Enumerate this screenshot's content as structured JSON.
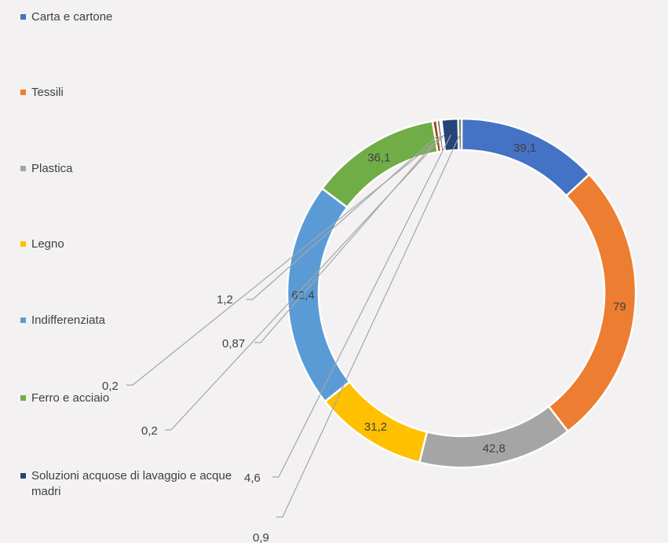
{
  "chart_data": {
    "type": "donut",
    "title": "",
    "legend_position": "left",
    "categories": [
      "Carta e cartone",
      "Tessili",
      "Plastica",
      "Legno",
      "Indifferenziata",
      "Ferro e acciaio",
      "Soluzioni acquose di lavaggio e acque madri"
    ],
    "legend_entries": [
      {
        "label": "Carta e cartone",
        "color": "#4472c4"
      },
      {
        "label": "Tessili",
        "color": "#ed7d31"
      },
      {
        "label": "Plastica",
        "color": "#a5a5a5"
      },
      {
        "label": "Legno",
        "color": "#ffc000"
      },
      {
        "label": "Indifferenziata",
        "color": "#5b9bd5"
      },
      {
        "label": "Ferro e acciaio",
        "color": "#70ad47"
      },
      {
        "label": "Soluzioni acquose di lavaggio e acque madri",
        "color": "#264478"
      }
    ],
    "slices": [
      {
        "value": 39.1,
        "label": "39,1",
        "color": "#4472c4"
      },
      {
        "value": 79,
        "label": "79",
        "color": "#ed7d31"
      },
      {
        "value": 42.8,
        "label": "42,8",
        "color": "#a5a5a5"
      },
      {
        "value": 31.2,
        "label": "31,2",
        "color": "#ffc000"
      },
      {
        "value": 62.4,
        "label": "62,4",
        "color": "#5b9bd5"
      },
      {
        "value": 36.1,
        "label": "36,1",
        "color": "#70ad47"
      },
      {
        "value": 1.2,
        "label": "1,2",
        "color": "#9e480e"
      },
      {
        "value": 0.87,
        "label": "0,87",
        "color": "#636363"
      },
      {
        "value": 0.2,
        "label": "0,2",
        "color": "#997300"
      },
      {
        "value": 0.2,
        "label": "0,2",
        "color": "#255e91"
      },
      {
        "value": 4.6,
        "label": "4,6",
        "color": "#264478"
      },
      {
        "value": 0.9,
        "label": "0,9",
        "color": "#43682b"
      }
    ]
  }
}
